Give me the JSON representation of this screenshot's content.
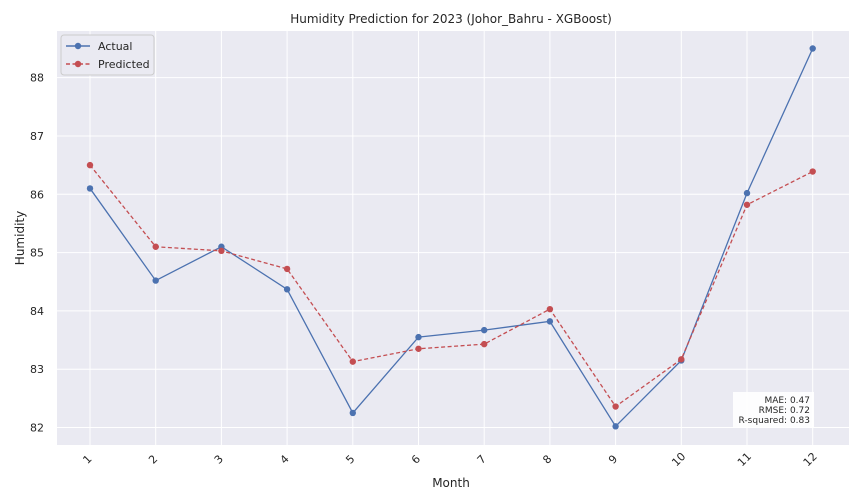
{
  "chart_data": {
    "type": "line",
    "title": "Humidity Prediction for 2023 (Johor_Bahru - XGBoost)",
    "xlabel": "Month",
    "ylabel": "Humidity",
    "categories": [
      "1",
      "2",
      "3",
      "4",
      "5",
      "6",
      "7",
      "8",
      "9",
      "10",
      "11",
      "12"
    ],
    "y_ticks": [
      82,
      83,
      84,
      85,
      86,
      87,
      88
    ],
    "ylim": [
      81.7,
      88.8
    ],
    "grid": true,
    "legend_position": "top-left",
    "series": [
      {
        "name": "Actual",
        "color": "#4c72b0",
        "style": "solid",
        "values": [
          86.1,
          84.52,
          85.1,
          84.37,
          82.25,
          83.55,
          83.67,
          83.82,
          82.02,
          83.15,
          86.02,
          88.5
        ]
      },
      {
        "name": "Predicted",
        "color": "#c44e52",
        "style": "dashed",
        "values": [
          86.5,
          85.1,
          85.03,
          84.72,
          83.13,
          83.35,
          83.43,
          84.03,
          82.36,
          83.17,
          85.82,
          86.39
        ]
      }
    ],
    "metrics": [
      {
        "label": "MAE: 0.47"
      },
      {
        "label": "RMSE: 0.72"
      },
      {
        "label": "R-squared: 0.83"
      }
    ]
  }
}
